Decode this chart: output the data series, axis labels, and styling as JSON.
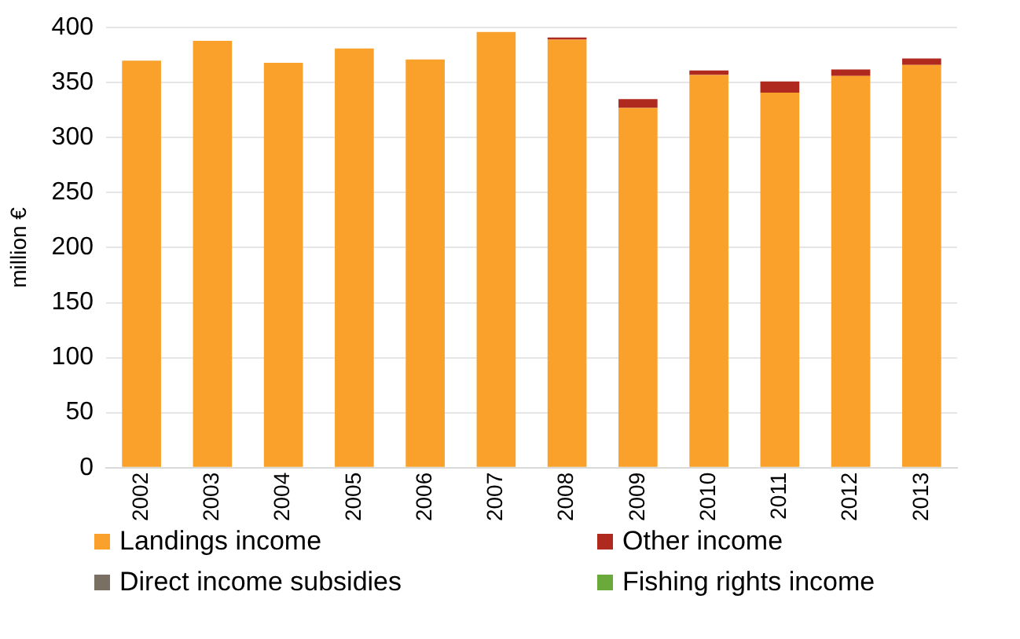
{
  "chart_data": {
    "type": "bar",
    "stacked": true,
    "ylabel": "million €",
    "categories": [
      "2002",
      "2003",
      "2004",
      "2005",
      "2006",
      "2007",
      "2008",
      "2009",
      "2010",
      "2011",
      "2012",
      "2013"
    ],
    "series": [
      {
        "name": "Landings income",
        "color": "#f9a12a",
        "values": [
          370,
          388,
          368,
          381,
          371,
          396,
          389,
          327,
          357,
          341,
          356,
          366
        ]
      },
      {
        "name": "Other income",
        "color": "#b0291f",
        "values": [
          null,
          null,
          null,
          null,
          null,
          null,
          2,
          8,
          4,
          10,
          6,
          6
        ]
      },
      {
        "name": "Direct income subsidies",
        "color": "#7a6f63",
        "values": [
          0,
          0,
          0,
          0,
          0,
          0,
          0,
          0,
          0,
          0,
          0,
          0
        ]
      },
      {
        "name": "Fishing rights income",
        "color": "#6aaa3a",
        "values": [
          0,
          0,
          0,
          0,
          0,
          0,
          0,
          0,
          0,
          0,
          0,
          0
        ]
      }
    ],
    "ylim": [
      0,
      400
    ],
    "yticks": [
      0,
      50,
      100,
      150,
      200,
      250,
      300,
      350,
      400
    ],
    "grid": "y",
    "legend": "bottom"
  }
}
